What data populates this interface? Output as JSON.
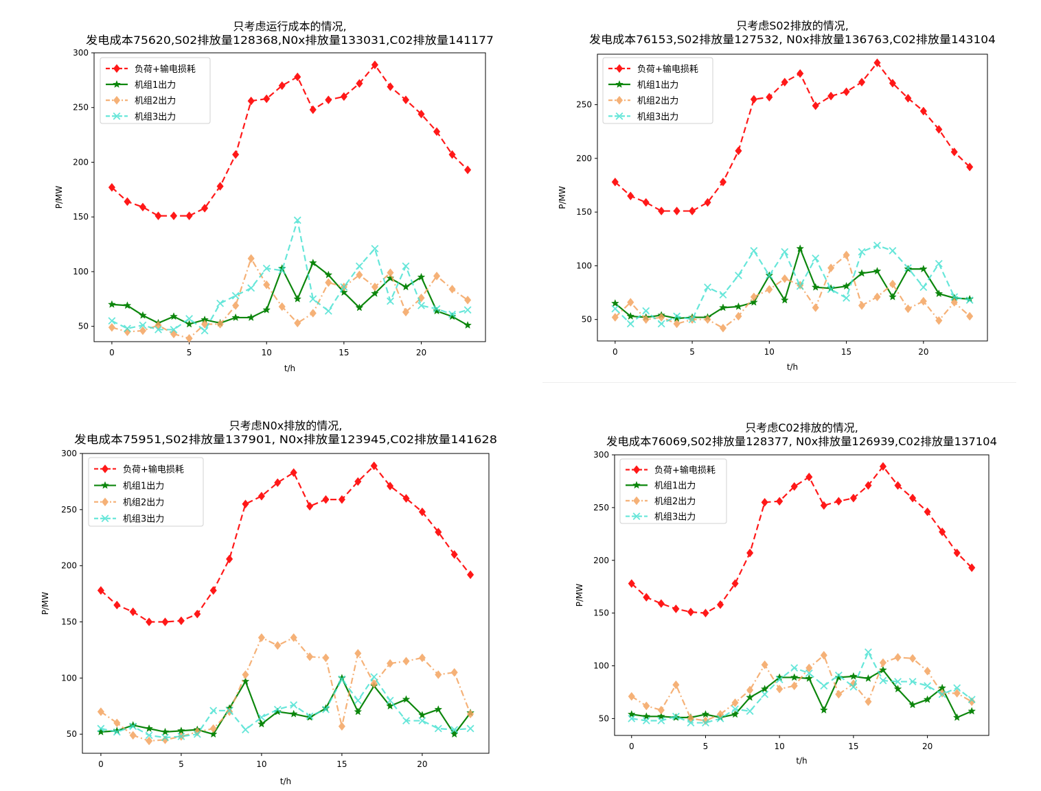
{
  "chart_data": [
    {
      "type": "line",
      "title": "只考虑运行成本的情况,",
      "subtitle": "发电成本75620,S02排放量128368,N0x排放量133031,C02排放量141177",
      "xlabel": "t/h",
      "ylabel": "P/MW",
      "xlim": [
        -1.15,
        24.15
      ],
      "ylim": [
        36,
        300
      ],
      "xticks": [
        0,
        5,
        10,
        15,
        20
      ],
      "yticks": [
        50,
        100,
        150,
        200,
        250,
        300
      ],
      "legend": "top-left",
      "series": [
        {
          "name": "负荷+输电损耗",
          "color": "#ff0000",
          "marker": "diamond",
          "linestyle": "dashed",
          "values": [
            177,
            164,
            159,
            151,
            151,
            151,
            158,
            178,
            207,
            256,
            258,
            270,
            278,
            248,
            257,
            260,
            272,
            289,
            269,
            257,
            244,
            228,
            207,
            193
          ]
        },
        {
          "name": "机组1出力",
          "color": "#008000",
          "marker": "star",
          "linestyle": "solid",
          "values": [
            70,
            69,
            60,
            53,
            59,
            52,
            56,
            53,
            58,
            58,
            65,
            103,
            75,
            108,
            97,
            81,
            67,
            80,
            94,
            86,
            95,
            64,
            59,
            51
          ]
        },
        {
          "name": "机组2出力",
          "color": "#f4a460",
          "marker": "diamond",
          "linestyle": "dashdot",
          "values": [
            49,
            45,
            46,
            51,
            43,
            39,
            52,
            52,
            69,
            112,
            88,
            68,
            53,
            62,
            90,
            86,
            97,
            86,
            99,
            63,
            76,
            96,
            84,
            74
          ]
        },
        {
          "name": "机组3出力",
          "color": "#40e0d0",
          "marker": "x",
          "linestyle": "dashed",
          "values": [
            55,
            48,
            51,
            47,
            47,
            57,
            46,
            71,
            78,
            85,
            103,
            101,
            147,
            75,
            64,
            86,
            105,
            121,
            73,
            105,
            69,
            66,
            61,
            65
          ]
        }
      ]
    },
    {
      "type": "line",
      "title": "只考虑S02排放的情况,",
      "subtitle": "发电成本76153,S02排放量127532, N0x排放量136763,C02排放量143104",
      "xlabel": "t/h",
      "ylabel": "P/MW",
      "xlim": [
        -1.15,
        24.15
      ],
      "ylim": [
        30,
        297
      ],
      "xticks": [
        0,
        5,
        10,
        15,
        20
      ],
      "yticks": [
        50,
        100,
        150,
        200,
        250
      ],
      "legend": "top-left",
      "series": [
        {
          "name": "负荷+输电损耗",
          "color": "#ff0000",
          "marker": "diamond",
          "linestyle": "dashed",
          "values": [
            178,
            165,
            159,
            151,
            151,
            151,
            159,
            178,
            207,
            255,
            257,
            271,
            279,
            249,
            258,
            262,
            271,
            289,
            270,
            256,
            244,
            227,
            206,
            192
          ]
        },
        {
          "name": "机组1出力",
          "color": "#008000",
          "marker": "star",
          "linestyle": "solid",
          "values": [
            65,
            53,
            52,
            54,
            51,
            52,
            52,
            61,
            62,
            66,
            91,
            68,
            116,
            80,
            79,
            81,
            93,
            95,
            71,
            97,
            97,
            74,
            70,
            69
          ]
        },
        {
          "name": "机组2出力",
          "color": "#f4a460",
          "marker": "diamond",
          "linestyle": "dashdot",
          "values": [
            52,
            66,
            50,
            52,
            46,
            50,
            50,
            42,
            53,
            71,
            78,
            88,
            82,
            61,
            98,
            110,
            63,
            71,
            83,
            60,
            67,
            49,
            66,
            53
          ]
        },
        {
          "name": "机组3出力",
          "color": "#40e0d0",
          "marker": "x",
          "linestyle": "dashed",
          "values": [
            60,
            46,
            58,
            46,
            53,
            50,
            80,
            73,
            91,
            114,
            91,
            113,
            81,
            107,
            78,
            70,
            113,
            119,
            114,
            98,
            80,
            102,
            71,
            68
          ]
        }
      ]
    },
    {
      "type": "line",
      "title": "只考虑N0x排放的情况,",
      "subtitle": "发电成本75951,S02排放量137901, N0x排放量123945,C02排放量141628",
      "xlabel": "t/h",
      "ylabel": "P/MW",
      "xlim": [
        -1.15,
        24.15
      ],
      "ylim": [
        33,
        300
      ],
      "xticks": [
        0,
        5,
        10,
        15,
        20
      ],
      "yticks": [
        50,
        100,
        150,
        200,
        250,
        300
      ],
      "legend": "top-left",
      "series": [
        {
          "name": "负荷+输电损耗",
          "color": "#ff0000",
          "marker": "diamond",
          "linestyle": "dashed",
          "values": [
            178,
            165,
            159,
            150,
            150,
            151,
            157,
            178,
            206,
            255,
            262,
            274,
            283,
            253,
            259,
            259,
            275,
            289,
            271,
            260,
            248,
            230,
            210,
            192
          ]
        },
        {
          "name": "机组1出力",
          "color": "#008000",
          "marker": "star",
          "linestyle": "solid",
          "values": [
            52,
            53,
            58,
            55,
            52,
            53,
            54,
            50,
            73,
            97,
            59,
            70,
            68,
            65,
            73,
            100,
            70,
            93,
            75,
            81,
            67,
            72,
            50,
            69
          ]
        },
        {
          "name": "机组2出力",
          "color": "#f4a460",
          "marker": "diamond",
          "linestyle": "dashdot",
          "values": [
            70,
            60,
            49,
            44,
            45,
            48,
            52,
            55,
            70,
            103,
            136,
            129,
            136,
            119,
            118,
            57,
            122,
            95,
            113,
            115,
            118,
            103,
            105,
            68
          ]
        },
        {
          "name": "机组3出力",
          "color": "#40e0d0",
          "marker": "x",
          "linestyle": "dashed",
          "values": [
            55,
            52,
            57,
            49,
            47,
            48,
            50,
            71,
            71,
            54,
            65,
            72,
            76,
            66,
            72,
            99,
            80,
            101,
            80,
            62,
            62,
            55,
            54,
            55
          ]
        }
      ]
    },
    {
      "type": "line",
      "title": "只考虑C02排放的情况,",
      "subtitle": "发电成本76069,S02排放量128377, N0x排放量126939,C02排放量137104",
      "xlabel": "t/h",
      "ylabel": "P/MW",
      "xlim": [
        -1.15,
        24.15
      ],
      "ylim": [
        34,
        300
      ],
      "xticks": [
        0,
        5,
        10,
        15,
        20
      ],
      "yticks": [
        50,
        100,
        150,
        200,
        250,
        300
      ],
      "legend": "top-left",
      "series": [
        {
          "name": "负荷+输电损耗",
          "color": "#ff0000",
          "marker": "diamond",
          "linestyle": "dashed",
          "values": [
            178,
            165,
            159,
            154,
            151,
            150,
            158,
            178,
            207,
            255,
            256,
            270,
            279,
            252,
            256,
            259,
            271,
            289,
            271,
            259,
            246,
            227,
            207,
            193
          ]
        },
        {
          "name": "机组1出力",
          "color": "#008000",
          "marker": "star",
          "linestyle": "solid",
          "values": [
            54,
            52,
            52,
            51,
            51,
            54,
            51,
            54,
            70,
            78,
            89,
            89,
            88,
            58,
            89,
            90,
            88,
            96,
            78,
            63,
            68,
            79,
            51,
            57
          ]
        },
        {
          "name": "机组2出力",
          "color": "#f4a460",
          "marker": "diamond",
          "linestyle": "dashdot",
          "values": [
            71,
            62,
            58,
            82,
            50,
            48,
            54,
            65,
            77,
            101,
            78,
            81,
            98,
            110,
            73,
            83,
            66,
            103,
            108,
            107,
            95,
            74,
            74,
            66
          ]
        },
        {
          "name": "机组3出力",
          "color": "#40e0d0",
          "marker": "x",
          "linestyle": "dashed",
          "values": [
            50,
            48,
            48,
            52,
            46,
            46,
            50,
            59,
            57,
            73,
            87,
            98,
            93,
            81,
            91,
            80,
            113,
            86,
            85,
            85,
            81,
            73,
            79,
            68
          ]
        }
      ]
    }
  ]
}
